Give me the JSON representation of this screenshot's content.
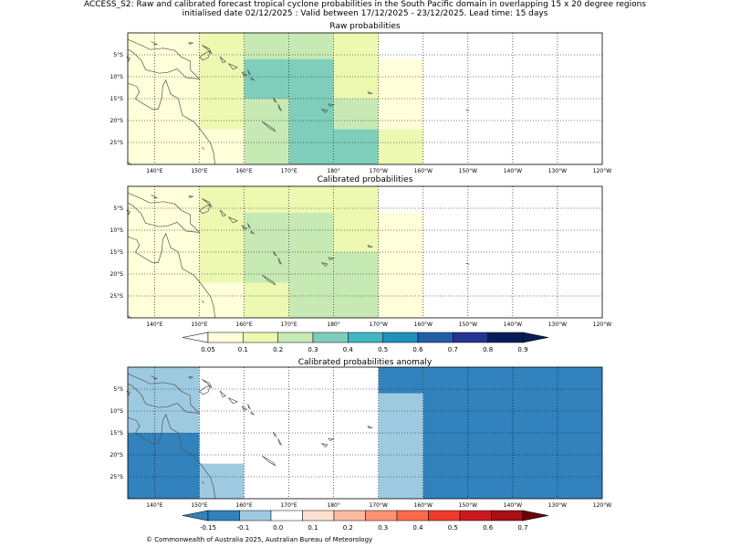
{
  "header": {
    "line1": "ACCESS_S2: Raw and calibrated forecast tropical cyclone probabilities in the South Pacific domain in overlapping 15 x 20 degree regions",
    "line2": "initialised date 02/12/2025 :  Valid between 17/12/2025 - 23/12/2025. Lead time: 15 days"
  },
  "colors": {
    "prob": [
      "#ffffd9",
      "#edf8b1",
      "#c7e9b4",
      "#7fcdbb",
      "#41b6c4",
      "#1d91c0",
      "#225ea8",
      "#253494",
      "#081d58"
    ],
    "prob_under": "#ffffff",
    "prob_over": "#081d58",
    "anom": [
      "#3182bd",
      "#9ecae1",
      "#ffffff",
      "#fee0d2",
      "#fcbba1",
      "#fc9272",
      "#fb6a4a",
      "#ef3b2c",
      "#cb181d",
      "#a50f15"
    ],
    "anom_under": "#3182bd",
    "anom_over": "#67000d",
    "land_outline": "#555555",
    "grid": "#000000"
  },
  "chart_data": [
    {
      "type": "heatmap",
      "title": "Raw probabilities",
      "xlabel": "",
      "ylabel": "",
      "xlim": [
        134,
        240
      ],
      "ylim": [
        -30,
        0
      ],
      "x_ticks": [
        140,
        150,
        160,
        170,
        180,
        190,
        200,
        210,
        220,
        230,
        240
      ],
      "x_tick_labels": [
        "140°E",
        "150°E",
        "160°E",
        "170°E",
        "180°",
        "170°W",
        "160°W",
        "150°W",
        "140°W",
        "130°W",
        "120°W"
      ],
      "y_ticks": [
        -5,
        -10,
        -15,
        -20,
        -25
      ],
      "y_tick_labels": [
        "5°S",
        "10°S",
        "15°S",
        "20°S",
        "25°S"
      ],
      "cells": [
        {
          "lon": [
            134,
            150
          ],
          "lat": [
            -30,
            0
          ],
          "p": 0.05
        },
        {
          "lon": [
            150,
            160
          ],
          "lat": [
            -22,
            0
          ],
          "p": 0.15
        },
        {
          "lon": [
            150,
            160
          ],
          "lat": [
            -30,
            -22
          ],
          "p": 0.05
        },
        {
          "lon": [
            160,
            170
          ],
          "lat": [
            -15,
            0
          ],
          "p": 0.25
        },
        {
          "lon": [
            170,
            180
          ],
          "lat": [
            -15,
            0
          ],
          "p": 0.25
        },
        {
          "lon": [
            160,
            180
          ],
          "lat": [
            -15,
            -6
          ],
          "p": 0.35
        },
        {
          "lon": [
            160,
            170
          ],
          "lat": [
            -30,
            -15
          ],
          "p": 0.25
        },
        {
          "lon": [
            170,
            180
          ],
          "lat": [
            -30,
            -15
          ],
          "p": 0.35
        },
        {
          "lon": [
            180,
            190
          ],
          "lat": [
            -15,
            0
          ],
          "p": 0.15
        },
        {
          "lon": [
            180,
            190
          ],
          "lat": [
            -22,
            -15
          ],
          "p": 0.25
        },
        {
          "lon": [
            180,
            190
          ],
          "lat": [
            -30,
            -22
          ],
          "p": 0.35
        },
        {
          "lon": [
            190,
            200
          ],
          "lat": [
            -22,
            -6
          ],
          "p": 0.05
        },
        {
          "lon": [
            190,
            200
          ],
          "lat": [
            -30,
            -22
          ],
          "p": 0.15
        }
      ]
    },
    {
      "type": "heatmap",
      "title": "Calibrated probabilities",
      "xlabel": "",
      "ylabel": "",
      "xlim": [
        134,
        240
      ],
      "ylim": [
        -30,
        0
      ],
      "x_ticks": [
        140,
        150,
        160,
        170,
        180,
        190,
        200,
        210,
        220,
        230,
        240
      ],
      "x_tick_labels": [
        "140°E",
        "150°E",
        "160°E",
        "170°E",
        "180°",
        "170°W",
        "160°W",
        "150°W",
        "140°W",
        "130°W",
        "120°W"
      ],
      "y_ticks": [
        -5,
        -10,
        -15,
        -20,
        -25
      ],
      "y_tick_labels": [
        "5°S",
        "10°S",
        "15°S",
        "20°S",
        "25°S"
      ],
      "cells": [
        {
          "lon": [
            134,
            150
          ],
          "lat": [
            -30,
            0
          ],
          "p": 0.05
        },
        {
          "lon": [
            150,
            160
          ],
          "lat": [
            -22,
            0
          ],
          "p": 0.15
        },
        {
          "lon": [
            150,
            160
          ],
          "lat": [
            -30,
            -22
          ],
          "p": 0.05
        },
        {
          "lon": [
            160,
            170
          ],
          "lat": [
            -6,
            0
          ],
          "p": 0.15
        },
        {
          "lon": [
            170,
            180
          ],
          "lat": [
            -6,
            0
          ],
          "p": 0.15
        },
        {
          "lon": [
            160,
            170
          ],
          "lat": [
            -22,
            -6
          ],
          "p": 0.25
        },
        {
          "lon": [
            160,
            170
          ],
          "lat": [
            -30,
            -22
          ],
          "p": 0.15
        },
        {
          "lon": [
            170,
            180
          ],
          "lat": [
            -30,
            -6
          ],
          "p": 0.25
        },
        {
          "lon": [
            180,
            190
          ],
          "lat": [
            -15,
            0
          ],
          "p": 0.15
        },
        {
          "lon": [
            180,
            190
          ],
          "lat": [
            -30,
            -15
          ],
          "p": 0.25
        },
        {
          "lon": [
            190,
            200
          ],
          "lat": [
            -30,
            -6
          ],
          "p": 0.05
        }
      ],
      "colorbar": {
        "ticks": [
          0.05,
          0.1,
          0.2,
          0.3,
          0.4,
          0.5,
          0.6,
          0.7,
          0.8,
          0.9
        ],
        "tick_labels": [
          "0.05",
          "0.1",
          "0.2",
          "0.3",
          "0.4",
          "0.5",
          "0.6",
          "0.7",
          "0.8",
          "0.9"
        ]
      }
    },
    {
      "type": "heatmap",
      "title": "Calibrated probabilities anomaly",
      "xlabel": "",
      "ylabel": "",
      "xlim": [
        134,
        240
      ],
      "ylim": [
        -30,
        0
      ],
      "x_ticks": [
        140,
        150,
        160,
        170,
        180,
        190,
        200,
        210,
        220,
        230,
        240
      ],
      "x_tick_labels": [
        "140°E",
        "150°E",
        "160°E",
        "170°E",
        "180°",
        "170°W",
        "160°W",
        "150°W",
        "140°W",
        "130°W",
        "120°W"
      ],
      "y_ticks": [
        -5,
        -10,
        -15,
        -20,
        -25
      ],
      "y_tick_labels": [
        "5°S",
        "10°S",
        "15°S",
        "20°S",
        "25°S"
      ],
      "cells": [
        {
          "lon": [
            134,
            150
          ],
          "lat": [
            -15,
            0
          ],
          "p": -0.1
        },
        {
          "lon": [
            134,
            150
          ],
          "lat": [
            -30,
            -15
          ],
          "p": -0.2
        },
        {
          "lon": [
            150,
            160
          ],
          "lat": [
            -22,
            0
          ],
          "p": 0
        },
        {
          "lon": [
            150,
            160
          ],
          "lat": [
            -30,
            -22
          ],
          "p": -0.1
        },
        {
          "lon": [
            160,
            170
          ],
          "lat": [
            -6,
            0
          ],
          "p": 0
        },
        {
          "lon": [
            160,
            170
          ],
          "lat": [
            -22,
            -6
          ],
          "p": 0.05
        },
        {
          "lon": [
            160,
            170
          ],
          "lat": [
            -30,
            -22
          ],
          "p": 0
        },
        {
          "lon": [
            170,
            180
          ],
          "lat": [
            -30,
            0
          ],
          "p": 0.05
        },
        {
          "lon": [
            180,
            190
          ],
          "lat": [
            -15,
            0
          ],
          "p": 0
        },
        {
          "lon": [
            180,
            190
          ],
          "lat": [
            -30,
            -15
          ],
          "p": 0.05
        },
        {
          "lon": [
            190,
            200
          ],
          "lat": [
            -6,
            0
          ],
          "p": -0.2
        },
        {
          "lon": [
            190,
            200
          ],
          "lat": [
            -30,
            -6
          ],
          "p": -0.1
        },
        {
          "lon": [
            200,
            240
          ],
          "lat": [
            -30,
            0
          ],
          "p": -0.2
        }
      ],
      "colorbar": {
        "ticks": [
          -0.15,
          -0.1,
          0,
          0.1,
          0.2,
          0.3,
          0.4,
          0.5,
          0.6,
          0.7
        ],
        "tick_labels": [
          "-0.15",
          "-0.1",
          "0.0",
          "0.1",
          "0.2",
          "0.3",
          "0.4",
          "0.5",
          "0.6",
          "0.7"
        ]
      }
    }
  ],
  "footer": {
    "copyright": "© Commonwealth of Australia 2025, Australian Bureau of Meteorology"
  }
}
